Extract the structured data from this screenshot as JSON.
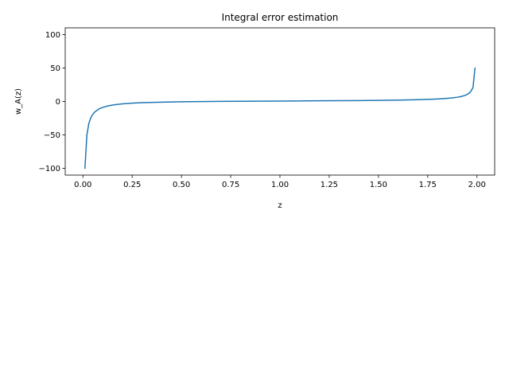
{
  "chart_data": {
    "type": "line",
    "title": "Integral error estimation",
    "xlabel": "z",
    "ylabel": "w_A(z)",
    "xlim": [
      -0.09,
      2.09
    ],
    "ylim": [
      -110,
      110
    ],
    "xticks": [
      0.0,
      0.25,
      0.5,
      0.75,
      1.0,
      1.25,
      1.5,
      1.75,
      2.0
    ],
    "xtick_labels": [
      "0.00",
      "0.25",
      "0.50",
      "0.75",
      "1.00",
      "1.25",
      "1.50",
      "1.75",
      "2.00"
    ],
    "yticks": [
      -100,
      -50,
      0,
      50,
      100
    ],
    "ytick_labels": [
      "−100",
      "−50",
      "0",
      "50",
      "100"
    ],
    "grid": false,
    "series": [
      {
        "color": "#1f77b4",
        "x": [
          0.01,
          0.02,
          0.03,
          0.04,
          0.05,
          0.06,
          0.08,
          0.1,
          0.13,
          0.16,
          0.2,
          0.25,
          0.3,
          0.4,
          0.5,
          0.6,
          0.7,
          0.8,
          0.9,
          1.0,
          1.1,
          1.2,
          1.3,
          1.4,
          1.5,
          1.6,
          1.7,
          1.75,
          1.8,
          1.84,
          1.87,
          1.9,
          1.92,
          1.94,
          1.95,
          1.96,
          1.97,
          1.98,
          1.99
        ],
        "y": [
          -100,
          -50,
          -32.8,
          -24.3,
          -19.1,
          -15.7,
          -11.4,
          -8.82,
          -6.42,
          -4.91,
          -3.59,
          -2.55,
          -1.86,
          -1.01,
          -0.5,
          -0.15,
          0.1,
          0.31,
          0.48,
          0.64,
          0.8,
          0.97,
          1.16,
          1.38,
          1.67,
          2.06,
          2.66,
          3.11,
          3.73,
          4.43,
          5.17,
          6.32,
          7.42,
          9.12,
          10.44,
          12.4,
          15.47,
          21.07,
          49.93
        ]
      }
    ]
  }
}
